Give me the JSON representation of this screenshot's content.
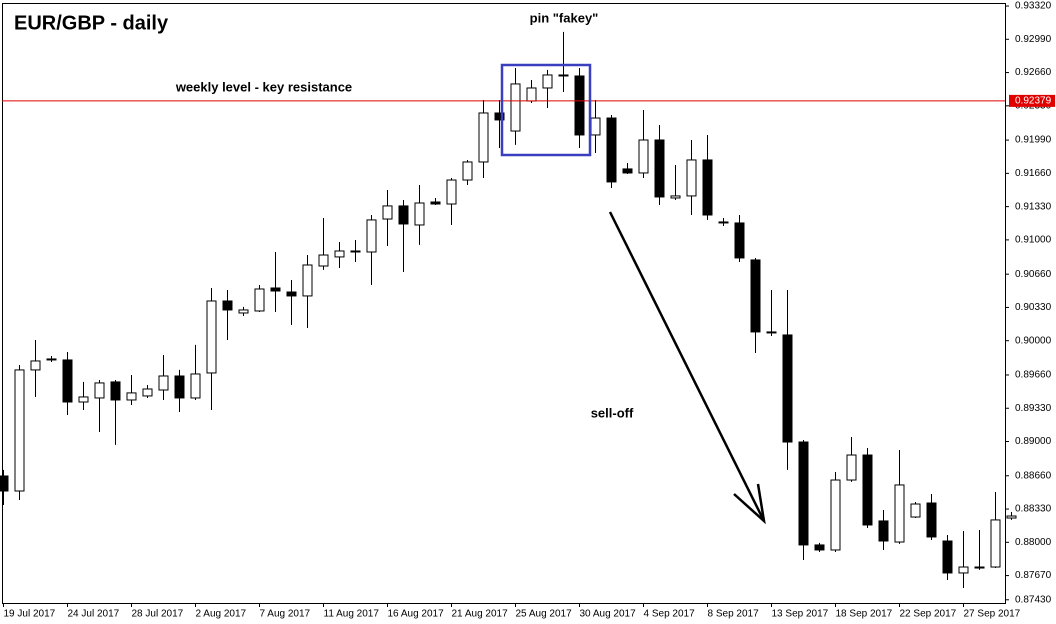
{
  "chart_data": {
    "type": "candlestick",
    "title": "EUR/GBP - daily",
    "annotations": {
      "pin": "pin \"fakey\"",
      "level": "weekly level - key resistance",
      "selloff": "sell-off"
    },
    "resistance": {
      "value": 0.92379,
      "label": "0.92379",
      "color": "#e00000"
    },
    "categories": [
      "19 Jul 2017",
      null,
      null,
      null,
      "24 Jul 2017",
      null,
      null,
      null,
      "28 Jul 2017",
      null,
      null,
      null,
      "2 Aug 2017",
      null,
      null,
      null,
      "7 Aug 2017",
      null,
      null,
      null,
      "11 Aug 2017",
      null,
      null,
      null,
      "16 Aug 2017",
      null,
      null,
      null,
      "21 Aug 2017",
      null,
      null,
      null,
      "25 Aug 2017",
      null,
      null,
      null,
      "30 Aug 2017",
      null,
      null,
      null,
      "4 Sep 2017",
      null,
      null,
      null,
      "8 Sep 2017",
      null,
      null,
      null,
      "13 Sep 2017",
      null,
      null,
      null,
      "18 Sep 2017",
      null,
      null,
      null,
      "22 Sep 2017",
      null,
      null,
      null,
      "27 Sep 2017",
      null,
      null,
      null
    ],
    "open": [
      0.88658,
      0.88509,
      0.8971,
      0.89819,
      0.89809,
      0.89392,
      0.89432,
      0.89591,
      0.89412,
      0.89452,
      0.89511,
      0.8965,
      0.89432,
      0.8968,
      0.90394,
      0.90275,
      0.90295,
      0.90523,
      0.90483,
      0.90444,
      0.90741,
      0.90831,
      0.9088,
      0.9088,
      0.91207,
      0.91337,
      0.91148,
      0.91376,
      0.91356,
      0.91594,
      0.91773,
      0.92259,
      0.9208,
      0.92378,
      0.92507,
      0.92626,
      0.92626,
      0.92041,
      0.92209,
      0.91704,
      0.91664,
      0.91991,
      0.91416,
      0.91436,
      0.91793,
      0.91178,
      0.91168,
      0.90801,
      0.90077,
      0.90057,
      0.88995,
      0.87974,
      0.87924,
      0.88618,
      0.88866,
      0.88212,
      0.88003,
      0.88251,
      0.8839,
      0.88013,
      0.87696,
      0.87745,
      0.87755,
      0.88241
    ],
    "high": [
      0.88718,
      0.89759,
      0.90007,
      0.89848,
      0.89888,
      0.89591,
      0.8961,
      0.8961,
      0.8966,
      0.89561,
      0.89858,
      0.8971,
      0.89958,
      0.90523,
      0.90503,
      0.90335,
      0.90553,
      0.9088,
      0.90602,
      0.9085,
      0.91217,
      0.90979,
      0.90999,
      0.91247,
      0.91495,
      0.91396,
      0.91545,
      0.91416,
      0.91614,
      0.91793,
      0.92388,
      0.92388,
      0.92705,
      0.92586,
      0.92686,
      0.93063,
      0.92705,
      0.92388,
      0.92239,
      0.91763,
      0.92289,
      0.9214,
      0.91743,
      0.91991,
      0.92041,
      0.91217,
      0.91247,
      0.90821,
      0.90503,
      0.90503,
      0.89015,
      0.87994,
      0.88698,
      0.89045,
      0.88936,
      0.88321,
      0.88916,
      0.884,
      0.88479,
      0.88073,
      0.88112,
      0.88122,
      0.88499,
      0.88301
    ],
    "low": [
      0.8837,
      0.8842,
      0.89442,
      0.89789,
      0.89263,
      0.89313,
      0.89094,
      0.88966,
      0.89362,
      0.89432,
      0.89412,
      0.89293,
      0.89412,
      0.89313,
      0.90007,
      0.90245,
      0.90285,
      0.90285,
      0.90156,
      0.90126,
      0.90702,
      0.90721,
      0.90781,
      0.90553,
      0.9094,
      0.90682,
      0.9095,
      0.91346,
      0.91148,
      0.91545,
      0.91614,
      0.91912,
      0.91942,
      0.92358,
      0.92309,
      0.92467,
      0.91912,
      0.91862,
      0.91515,
      0.91654,
      0.91614,
      0.91346,
      0.91396,
      0.91247,
      0.91198,
      0.91138,
      0.90781,
      0.89878,
      0.90047,
      0.88718,
      0.87825,
      0.87904,
      0.87904,
      0.88599,
      0.88142,
      0.87924,
      0.87984,
      0.88241,
      0.88023,
      0.87626,
      0.87547,
      0.87726,
      0.87745,
      0.88222
    ],
    "close": [
      0.88509,
      0.8971,
      0.89799,
      0.89809,
      0.89392,
      0.89442,
      0.89581,
      0.89412,
      0.89482,
      0.89521,
      0.8965,
      0.89432,
      0.8967,
      0.90394,
      0.90305,
      0.90305,
      0.90513,
      0.90493,
      0.90444,
      0.90751,
      0.9085,
      0.9089,
      0.9089,
      0.91198,
      0.91337,
      0.91158,
      0.91366,
      0.91356,
      0.91594,
      0.91773,
      0.92259,
      0.9219,
      0.92547,
      0.92507,
      0.92636,
      0.92636,
      0.92041,
      0.92209,
      0.91575,
      0.91664,
      0.91991,
      0.91426,
      0.91436,
      0.91793,
      0.91247,
      0.91168,
      0.90821,
      0.90087,
      0.90087,
      0.88995,
      0.87974,
      0.87924,
      0.88618,
      0.88866,
      0.88172,
      0.88013,
      0.88569,
      0.8838,
      0.88053,
      0.87696,
      0.87755,
      0.87755,
      0.88222,
      0.88261
    ],
    "up_color": "#ffffff",
    "down_color": "#000000",
    "ylim": [
      0.87398,
      0.9335
    ],
    "yticks": [
      {
        "value": 0.9332,
        "label": "0.93320"
      },
      {
        "value": 0.9299,
        "label": "0.92990"
      },
      {
        "value": 0.9266,
        "label": "0.92660"
      },
      {
        "value": 0.9233,
        "label": "0.92330"
      },
      {
        "value": 0.9199,
        "label": "0.91990"
      },
      {
        "value": 0.9166,
        "label": "0.91660"
      },
      {
        "value": 0.9133,
        "label": "0.91330"
      },
      {
        "value": 0.91,
        "label": "0.91000"
      },
      {
        "value": 0.9066,
        "label": "0.90660"
      },
      {
        "value": 0.9033,
        "label": "0.90330"
      },
      {
        "value": 0.9,
        "label": "0.90000"
      },
      {
        "value": 0.8966,
        "label": "0.89660"
      },
      {
        "value": 0.8933,
        "label": "0.89330"
      },
      {
        "value": 0.89,
        "label": "0.89000"
      },
      {
        "value": 0.8866,
        "label": "0.88660"
      },
      {
        "value": 0.8833,
        "label": "0.88330"
      },
      {
        "value": 0.88,
        "label": "0.88000"
      },
      {
        "value": 0.8767,
        "label": "0.87670"
      },
      {
        "value": 0.8743,
        "label": "0.87430"
      }
    ]
  }
}
